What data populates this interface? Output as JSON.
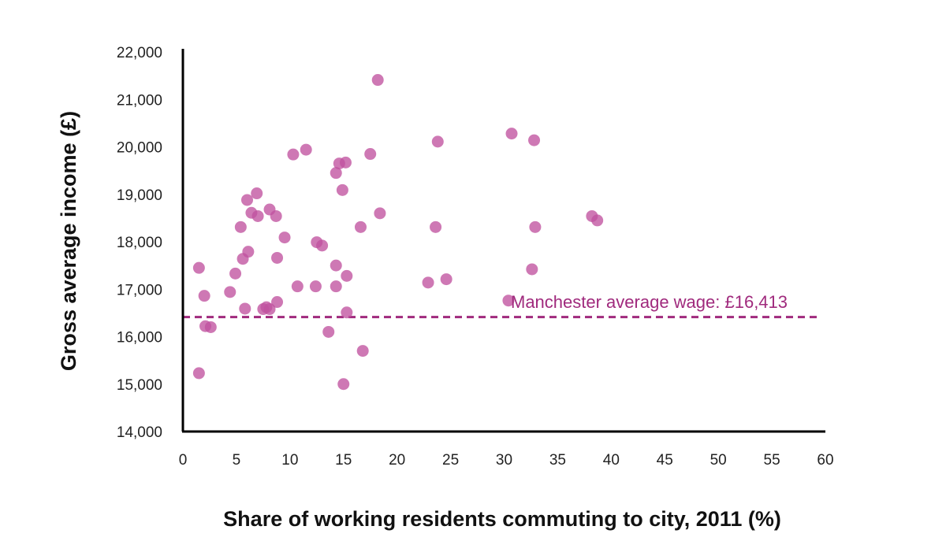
{
  "chart_data": {
    "type": "scatter",
    "title": "",
    "xlabel": "Share of working residents commuting to city, 2011 (%)",
    "ylabel": "Gross average income (£)",
    "xlim": [
      0,
      60
    ],
    "ylim": [
      14000,
      22000
    ],
    "x_ticks": [
      0,
      5,
      10,
      15,
      20,
      25,
      30,
      35,
      40,
      45,
      50,
      55,
      60
    ],
    "x_tick_labels": [
      "0",
      "5",
      "10",
      "15",
      "20",
      "25",
      "30",
      "35",
      "40",
      "45",
      "50",
      "55",
      "60"
    ],
    "y_ticks": [
      14000,
      15000,
      16000,
      17000,
      18000,
      19000,
      20000,
      21000,
      22000
    ],
    "y_tick_labels": [
      "14,000",
      "15,000",
      "16,000",
      "17,000",
      "18,000",
      "19,000",
      "20,000",
      "21,000",
      "22,000"
    ],
    "grid": false,
    "point_color": "#c0529f",
    "reference_line": {
      "value": 16413,
      "label": "Manchester average wage: £16,413",
      "color": "#a02a7d",
      "style": "dashed"
    },
    "points": [
      {
        "x": 1.5,
        "y": 17450
      },
      {
        "x": 1.5,
        "y": 15230
      },
      {
        "x": 2.0,
        "y": 16860
      },
      {
        "x": 2.1,
        "y": 16220
      },
      {
        "x": 2.6,
        "y": 16200
      },
      {
        "x": 4.4,
        "y": 16940
      },
      {
        "x": 4.9,
        "y": 17330
      },
      {
        "x": 5.4,
        "y": 18310
      },
      {
        "x": 5.6,
        "y": 17640
      },
      {
        "x": 5.8,
        "y": 16590
      },
      {
        "x": 6.0,
        "y": 18880
      },
      {
        "x": 6.1,
        "y": 17790
      },
      {
        "x": 6.4,
        "y": 18610
      },
      {
        "x": 6.9,
        "y": 19020
      },
      {
        "x": 7.0,
        "y": 18540
      },
      {
        "x": 7.5,
        "y": 16580
      },
      {
        "x": 7.8,
        "y": 16620
      },
      {
        "x": 8.1,
        "y": 16580
      },
      {
        "x": 8.1,
        "y": 18680
      },
      {
        "x": 8.7,
        "y": 18540
      },
      {
        "x": 8.8,
        "y": 17660
      },
      {
        "x": 8.8,
        "y": 16730
      },
      {
        "x": 9.5,
        "y": 18090
      },
      {
        "x": 10.3,
        "y": 19840
      },
      {
        "x": 10.7,
        "y": 17060
      },
      {
        "x": 11.5,
        "y": 19940
      },
      {
        "x": 12.4,
        "y": 17060
      },
      {
        "x": 12.5,
        "y": 17990
      },
      {
        "x": 13.0,
        "y": 17920
      },
      {
        "x": 13.6,
        "y": 16100
      },
      {
        "x": 14.3,
        "y": 19450
      },
      {
        "x": 14.3,
        "y": 17500
      },
      {
        "x": 14.3,
        "y": 17060
      },
      {
        "x": 14.6,
        "y": 19650
      },
      {
        "x": 14.9,
        "y": 19090
      },
      {
        "x": 15.0,
        "y": 15000
      },
      {
        "x": 15.2,
        "y": 19670
      },
      {
        "x": 15.3,
        "y": 17280
      },
      {
        "x": 15.3,
        "y": 16510
      },
      {
        "x": 16.6,
        "y": 18310
      },
      {
        "x": 16.8,
        "y": 15700
      },
      {
        "x": 17.5,
        "y": 19850
      },
      {
        "x": 18.2,
        "y": 21410
      },
      {
        "x": 18.4,
        "y": 18600
      },
      {
        "x": 22.9,
        "y": 17140
      },
      {
        "x": 23.6,
        "y": 18310
      },
      {
        "x": 23.8,
        "y": 20110
      },
      {
        "x": 24.6,
        "y": 17210
      },
      {
        "x": 30.4,
        "y": 16760
      },
      {
        "x": 30.7,
        "y": 20280
      },
      {
        "x": 32.6,
        "y": 17420
      },
      {
        "x": 32.8,
        "y": 20140
      },
      {
        "x": 32.9,
        "y": 18310
      },
      {
        "x": 38.2,
        "y": 18540
      },
      {
        "x": 38.7,
        "y": 18450
      }
    ]
  }
}
